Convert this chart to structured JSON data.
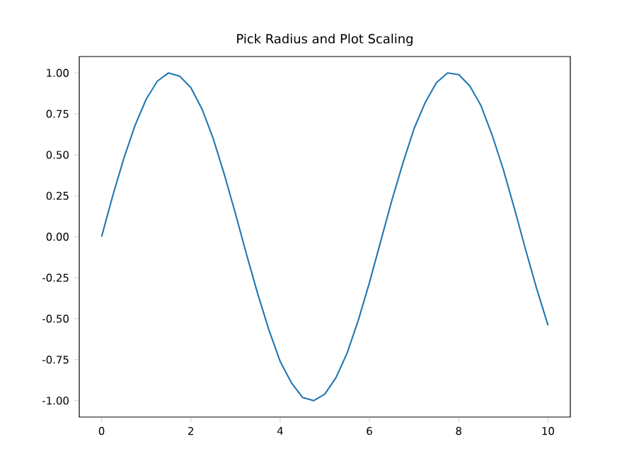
{
  "chart_data": {
    "type": "line",
    "title": "Pick Radius and Plot Scaling",
    "x": [
      0,
      0.25,
      0.5,
      0.75,
      1,
      1.25,
      1.5,
      1.75,
      2,
      2.25,
      2.5,
      2.75,
      3,
      3.25,
      3.5,
      3.75,
      4,
      4.25,
      4.5,
      4.75,
      5,
      5.25,
      5.5,
      5.75,
      6,
      6.25,
      6.5,
      6.75,
      7,
      7.25,
      7.5,
      7.75,
      8,
      8.25,
      8.5,
      8.75,
      9,
      9.25,
      9.5,
      9.75,
      10
    ],
    "series": [
      {
        "color": "#1f77b4",
        "values": [
          0,
          0.25,
          0.48,
          0.68,
          0.84,
          0.95,
          1.0,
          0.98,
          0.91,
          0.78,
          0.6,
          0.38,
          0.14,
          -0.11,
          -0.35,
          -0.57,
          -0.76,
          -0.89,
          -0.98,
          -1.0,
          -0.96,
          -0.86,
          -0.71,
          -0.51,
          -0.28,
          -0.03,
          0.22,
          0.45,
          0.66,
          0.82,
          0.94,
          1.0,
          0.99,
          0.92,
          0.8,
          0.62,
          0.41,
          0.17,
          -0.08,
          -0.32,
          -0.54
        ]
      }
    ],
    "xlim": [
      -0.5,
      10.5
    ],
    "ylim": [
      -1.1,
      1.1
    ],
    "xticks": [
      0,
      2,
      4,
      6,
      8,
      10
    ],
    "yticks": [
      {
        "value": -1,
        "label": "-1.00"
      },
      {
        "value": -0.75,
        "label": "-0.75"
      },
      {
        "value": -0.5,
        "label": "-0.50"
      },
      {
        "value": -0.25,
        "label": "-0.25"
      },
      {
        "value": 0,
        "label": "0.00"
      },
      {
        "value": 0.25,
        "label": "0.25"
      },
      {
        "value": 0.5,
        "label": "0.50"
      },
      {
        "value": 0.75,
        "label": "0.75"
      },
      {
        "value": 1,
        "label": "1.00"
      }
    ],
    "grid": false,
    "marker": "none",
    "line_style": "solid"
  }
}
